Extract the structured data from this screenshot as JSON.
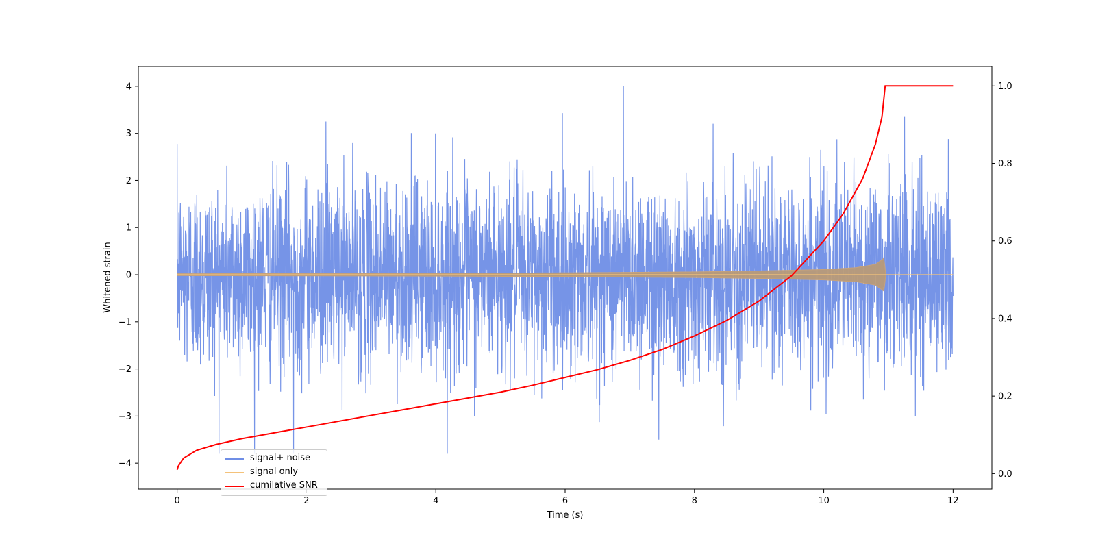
{
  "chart_data": {
    "type": "line",
    "title": "",
    "xlabel": "Time (s)",
    "ylabel": "Whitened strain",
    "y2label": "",
    "xlim": [
      -0.6,
      12.6
    ],
    "ylim": [
      -4.55,
      4.42
    ],
    "y2lim": [
      -0.04,
      1.05
    ],
    "x_ticks": [
      0,
      2,
      4,
      6,
      8,
      10,
      12
    ],
    "y_ticks": [
      -4,
      -3,
      -2,
      -1,
      0,
      1,
      2,
      3,
      4
    ],
    "y2_ticks": [
      0.0,
      0.2,
      0.4,
      0.6,
      0.8,
      1.0
    ],
    "x_tick_labels": [
      "0",
      "2",
      "4",
      "6",
      "8",
      "10",
      "12"
    ],
    "y_tick_labels": [
      "−4",
      "−3",
      "−2",
      "−1",
      "0",
      "1",
      "2",
      "3",
      "4"
    ],
    "y2_tick_labels": [
      "0.0",
      "0.2",
      "0.4",
      "0.6",
      "0.8",
      "1.0"
    ],
    "grid": false,
    "legend_position": "lower-left",
    "series": [
      {
        "name": "signal+ noise",
        "axis": "left",
        "color": "#6f8ee6",
        "description_values": {
          "x_range": [
            0,
            12
          ],
          "approx_std": 1.0,
          "approx_max": 4.0,
          "approx_min": -3.8,
          "notable_peaks": [
            {
              "x": 6.9,
              "y": 4.0
            },
            {
              "x": 1.8,
              "y": -3.8
            },
            {
              "x": 7.45,
              "y": -3.5
            },
            {
              "x": 11.25,
              "y": 3.35
            },
            {
              "x": 2.3,
              "y": 3.25
            }
          ]
        }
      },
      {
        "name": "signal only",
        "axis": "left",
        "color": "#f4c27a",
        "envelope": {
          "x": [
            0,
            2,
            4,
            6,
            8,
            9,
            10,
            10.5,
            10.8,
            10.93,
            10.96,
            12
          ],
          "amplitude": [
            0.02,
            0.025,
            0.03,
            0.04,
            0.06,
            0.08,
            0.11,
            0.15,
            0.22,
            0.35,
            0.0,
            0.0
          ]
        }
      },
      {
        "name": "cumilative SNR",
        "axis": "right",
        "color": "#ff0000",
        "x": [
          0,
          0.02,
          0.1,
          0.3,
          0.6,
          1,
          1.5,
          2,
          2.5,
          3,
          3.5,
          4,
          4.5,
          5,
          5.5,
          6,
          6.5,
          7,
          7.5,
          8,
          8.5,
          9,
          9.5,
          10,
          10.3,
          10.6,
          10.8,
          10.9,
          10.95,
          12
        ],
        "y": [
          0.01,
          0.02,
          0.04,
          0.06,
          0.075,
          0.09,
          0.105,
          0.12,
          0.135,
          0.15,
          0.165,
          0.18,
          0.195,
          0.21,
          0.228,
          0.248,
          0.268,
          0.292,
          0.32,
          0.355,
          0.395,
          0.445,
          0.51,
          0.6,
          0.67,
          0.76,
          0.85,
          0.92,
          1.0,
          1.0
        ]
      }
    ]
  }
}
